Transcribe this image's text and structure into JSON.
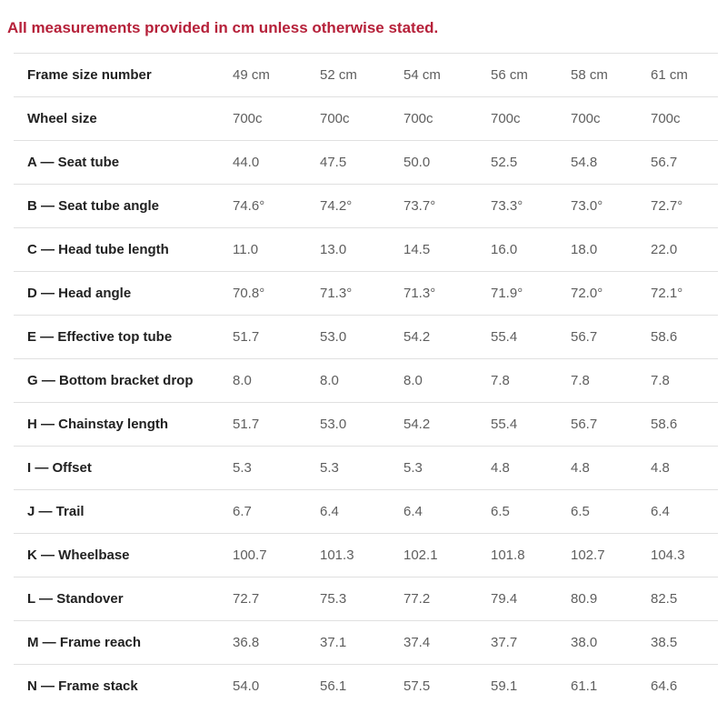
{
  "page": {
    "note": "All measurements provided in cm unless otherwise stated."
  },
  "colors": {
    "note_red": "#b6213a",
    "label_text": "#212121",
    "value_text": "#5e5e5e",
    "divider": "#e0e0e0",
    "background": "#ffffff"
  },
  "table": {
    "header_label": "Frame size number",
    "header_values": [
      "49 cm",
      "52 cm",
      "54 cm",
      "56 cm",
      "58 cm",
      "61 cm"
    ],
    "rows": [
      {
        "label": "Wheel size",
        "values": [
          "700c",
          "700c",
          "700c",
          "700c",
          "700c",
          "700c"
        ]
      },
      {
        "label": "A — Seat tube",
        "values": [
          "44.0",
          "47.5",
          "50.0",
          "52.5",
          "54.8",
          "56.7"
        ]
      },
      {
        "label": "B — Seat tube angle",
        "values": [
          "74.6°",
          "74.2°",
          "73.7°",
          "73.3°",
          "73.0°",
          "72.7°"
        ]
      },
      {
        "label": "C — Head tube length",
        "values": [
          "11.0",
          "13.0",
          "14.5",
          "16.0",
          "18.0",
          "22.0"
        ]
      },
      {
        "label": "D — Head angle",
        "values": [
          "70.8°",
          "71.3°",
          "71.3°",
          "71.9°",
          "72.0°",
          "72.1°"
        ]
      },
      {
        "label": "E — Effective top tube",
        "values": [
          "51.7",
          "53.0",
          "54.2",
          "55.4",
          "56.7",
          "58.6"
        ]
      },
      {
        "label": "G — Bottom bracket drop",
        "values": [
          "8.0",
          "8.0",
          "8.0",
          "7.8",
          "7.8",
          "7.8"
        ]
      },
      {
        "label": "H — Chainstay length",
        "values": [
          "51.7",
          "53.0",
          "54.2",
          "55.4",
          "56.7",
          "58.6"
        ]
      },
      {
        "label": "I — Offset",
        "values": [
          "5.3",
          "5.3",
          "5.3",
          "4.8",
          "4.8",
          "4.8"
        ]
      },
      {
        "label": "J — Trail",
        "values": [
          "6.7",
          "6.4",
          "6.4",
          "6.5",
          "6.5",
          "6.4"
        ]
      },
      {
        "label": "K — Wheelbase",
        "values": [
          "100.7",
          "101.3",
          "102.1",
          "101.8",
          "102.7",
          "104.3"
        ]
      },
      {
        "label": "L — Standover",
        "values": [
          "72.7",
          "75.3",
          "77.2",
          "79.4",
          "80.9",
          "82.5"
        ]
      },
      {
        "label": "M — Frame reach",
        "values": [
          "36.8",
          "37.1",
          "37.4",
          "37.7",
          "38.0",
          "38.5"
        ]
      },
      {
        "label": "N — Frame stack",
        "values": [
          "54.0",
          "56.1",
          "57.5",
          "59.1",
          "61.1",
          "64.6"
        ]
      }
    ]
  }
}
